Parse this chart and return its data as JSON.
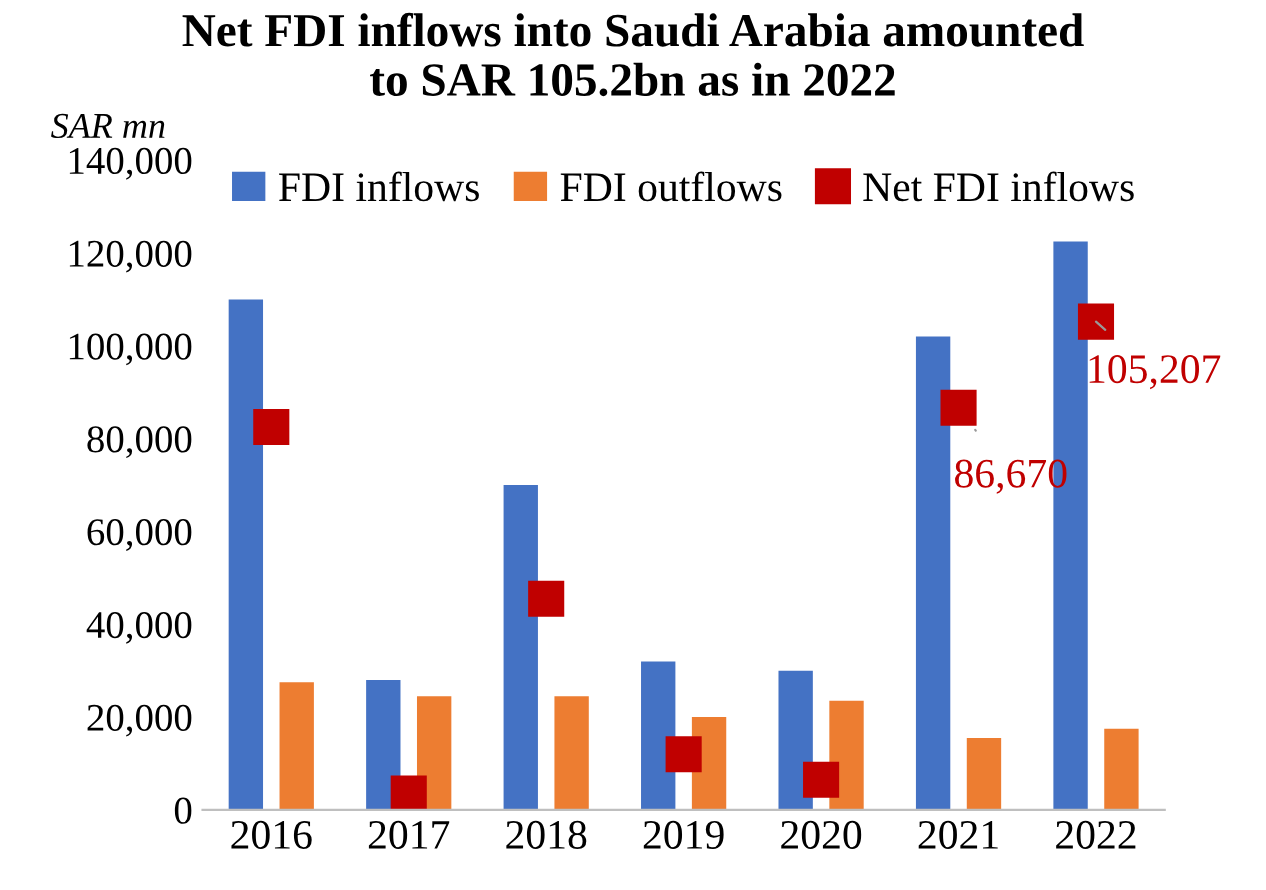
{
  "chart_data": {
    "type": "bar",
    "title": "Net FDI inflows into Saudi Arabia amounted\nto SAR 105.2bn as in 2022",
    "ylabel": "SAR mn",
    "categories": [
      "2016",
      "2017",
      "2018",
      "2019",
      "2020",
      "2021",
      "2022"
    ],
    "series": [
      {
        "name": "FDI inflows",
        "color": "#4472c4",
        "values": [
          110000,
          28000,
          70000,
          32000,
          30000,
          102000,
          122500
        ]
      },
      {
        "name": "FDI outflows",
        "color": "#ed7d31",
        "values": [
          27500,
          24500,
          24500,
          20000,
          23500,
          15500,
          17500
        ]
      },
      {
        "name": "Net FDI inflows",
        "type": "scatter",
        "marker": "square",
        "color": "#c00000",
        "values": [
          82500,
          3500,
          45500,
          12000,
          6500,
          86670,
          105207
        ],
        "value_labels": [
          null,
          null,
          null,
          null,
          null,
          "86,670",
          "105,207"
        ]
      }
    ],
    "ylim": [
      0,
      140000
    ],
    "yticks": [
      {
        "value": 0,
        "label": "0"
      },
      {
        "value": 20000,
        "label": "20,000"
      },
      {
        "value": 40000,
        "label": "40,000"
      },
      {
        "value": 60000,
        "label": "60,000"
      },
      {
        "value": 80000,
        "label": "80,000"
      },
      {
        "value": 100000,
        "label": "100,000"
      },
      {
        "value": 120000,
        "label": "120,000"
      },
      {
        "value": 140000,
        "label": "140,000"
      }
    ],
    "grid": false,
    "legend": "top"
  }
}
